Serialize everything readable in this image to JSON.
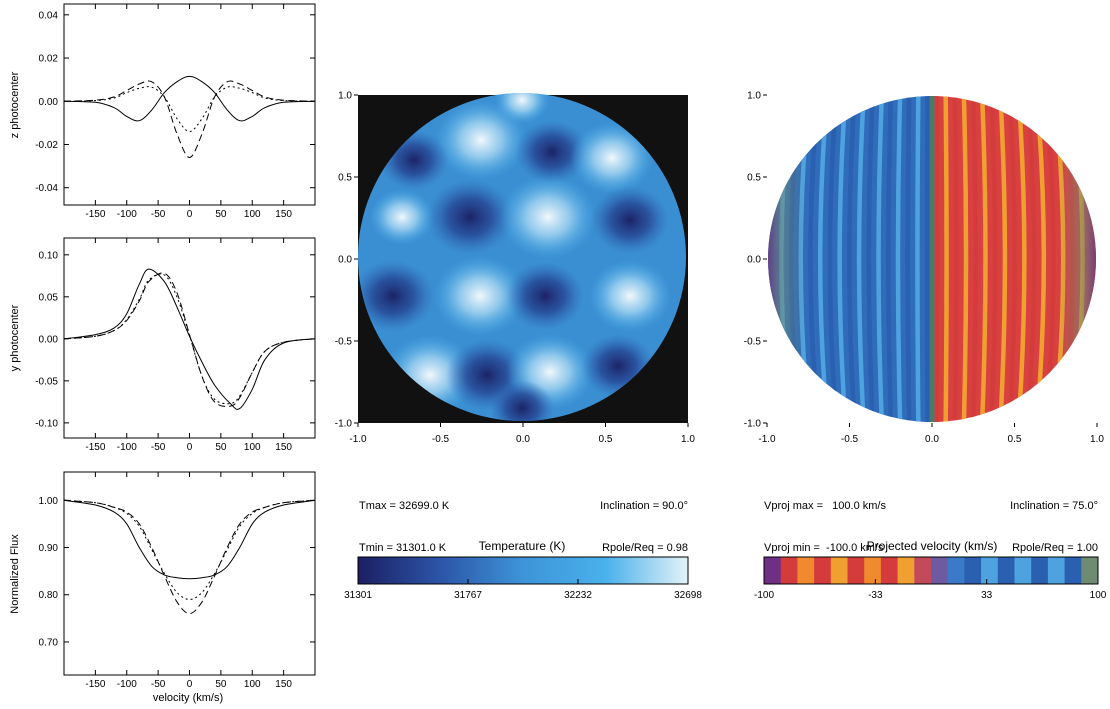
{
  "line_panels": [
    {
      "ylabel": "z photocenter",
      "xlabel": "",
      "xlim": [
        -200,
        200
      ],
      "ylim": [
        -0.048,
        0.045
      ],
      "yticks": [
        "0.04",
        "0.02",
        "0.00",
        "-0.02",
        "-0.04"
      ],
      "ytick_values": [
        0.04,
        0.02,
        0.0,
        -0.02,
        -0.04
      ],
      "xticks": [
        "-150",
        "-100",
        "-50",
        "0",
        "50",
        "100",
        "150"
      ],
      "xtick_values": [
        -150,
        -100,
        -50,
        0,
        50,
        100,
        150
      ]
    },
    {
      "ylabel": "y photocenter",
      "xlabel": "",
      "xlim": [
        -200,
        200
      ],
      "ylim": [
        -0.118,
        0.12
      ],
      "yticks": [
        "0.10",
        "0.05",
        "0.00",
        "-0.05",
        "-0.10"
      ],
      "ytick_values": [
        0.1,
        0.05,
        0.0,
        -0.05,
        -0.1
      ],
      "xticks": [
        "-150",
        "-100",
        "-50",
        "0",
        "50",
        "100",
        "150"
      ],
      "xtick_values": [
        -150,
        -100,
        -50,
        0,
        50,
        100,
        150
      ]
    },
    {
      "ylabel": "Normalized Flux",
      "xlabel": "velocity (km/s)",
      "xlim": [
        -200,
        200
      ],
      "ylim": [
        0.63,
        1.06
      ],
      "yticks": [
        "1.00",
        "0.90",
        "0.80",
        "0.70"
      ],
      "ytick_values": [
        1.0,
        0.9,
        0.8,
        0.7
      ],
      "xticks": [
        "-150",
        "-100",
        "-50",
        "0",
        "50",
        "100",
        "150"
      ],
      "xtick_values": [
        -150,
        -100,
        -50,
        0,
        50,
        100,
        150
      ]
    }
  ],
  "image_panels": [
    {
      "kind": "temperature",
      "ticks": [
        "-1.0",
        "-0.5",
        "0.0",
        "0.5",
        "1.0"
      ],
      "tick_values": [
        -1.0,
        -0.5,
        0.0,
        0.5,
        1.0
      ],
      "info_left": [
        "Tmax = 32699.0 K",
        "Tmin = 31301.0 K"
      ],
      "info_right": [
        "Inclination = 90.0°",
        "Rpole/Req = 0.98"
      ],
      "colorbar": {
        "title": "Temperature (K)",
        "tick_labels": [
          "31301",
          "31767",
          "32232",
          "32698"
        ],
        "stops": [
          "#1b1f63",
          "#2c55a8",
          "#3d94d8",
          "#49b1ec",
          "#e4f2f8"
        ]
      }
    },
    {
      "kind": "velocity",
      "ticks": [
        "-1.0",
        "-0.5",
        "0.0",
        "0.5",
        "1.0"
      ],
      "tick_values": [
        -1.0,
        -0.5,
        0.0,
        0.5,
        1.0
      ],
      "info_left": [
        "Vproj max =   100.0 km/s",
        "Vproj min =  -100.0 km/s"
      ],
      "info_right": [
        "Inclination = 75.0°",
        "Rpole/Req = 1.00"
      ],
      "colorbar": {
        "title": "Projected velocity (km/s)",
        "tick_labels": [
          "-100",
          "-33",
          "33",
          "100"
        ],
        "stops": [
          "#6e2f85",
          "#d43c3c",
          "#ef8a2e",
          "#4a9ad8",
          "#2b5fb0",
          "#6f8b72"
        ]
      }
    }
  ],
  "chart_data": [
    {
      "type": "line",
      "ylabel": "z photocenter",
      "x": [
        -200,
        -150,
        -120,
        -100,
        -80,
        -60,
        -40,
        -20,
        0,
        20,
        40,
        60,
        80,
        100,
        120,
        150,
        200
      ],
      "ylim": [
        -0.048,
        0.045
      ],
      "series": [
        {
          "style": "solid",
          "values": [
            0.0,
            -0.0005,
            -0.003,
            -0.007,
            -0.009,
            -0.004,
            0.004,
            0.009,
            0.0115,
            0.009,
            0.004,
            -0.004,
            -0.009,
            -0.007,
            -0.003,
            -0.0005,
            0.0
          ]
        },
        {
          "style": "dashed",
          "values": [
            0.0,
            0.0005,
            0.002,
            0.005,
            0.008,
            0.009,
            0.002,
            -0.015,
            -0.026,
            -0.015,
            0.002,
            0.009,
            0.008,
            0.005,
            0.002,
            0.0005,
            0.0
          ]
        },
        {
          "style": "dotted",
          "values": [
            0.0,
            0.0003,
            0.0015,
            0.004,
            0.006,
            0.0065,
            0.002,
            -0.008,
            -0.014,
            -0.008,
            0.002,
            0.0065,
            0.006,
            0.004,
            0.0015,
            0.0003,
            0.0
          ]
        }
      ]
    },
    {
      "type": "line",
      "ylabel": "y photocenter",
      "x": [
        -200,
        -150,
        -120,
        -100,
        -80,
        -65,
        -40,
        -20,
        0,
        20,
        40,
        65,
        80,
        100,
        120,
        150,
        200
      ],
      "ylim": [
        -0.118,
        0.12
      ],
      "series": [
        {
          "style": "solid",
          "values": [
            0.0,
            0.005,
            0.013,
            0.03,
            0.065,
            0.083,
            0.068,
            0.038,
            0.003,
            -0.028,
            -0.055,
            -0.077,
            -0.083,
            -0.06,
            -0.025,
            -0.005,
            0.0
          ]
        },
        {
          "style": "dashed",
          "values": [
            0.0,
            0.003,
            0.01,
            0.022,
            0.045,
            0.068,
            0.078,
            0.055,
            0.005,
            -0.045,
            -0.075,
            -0.08,
            -0.07,
            -0.04,
            -0.015,
            -0.004,
            0.0
          ]
        },
        {
          "style": "dotted",
          "values": [
            0.0,
            0.003,
            0.01,
            0.023,
            0.047,
            0.07,
            0.076,
            0.05,
            0.004,
            -0.045,
            -0.072,
            -0.077,
            -0.068,
            -0.04,
            -0.015,
            -0.004,
            0.0
          ]
        }
      ]
    },
    {
      "type": "line",
      "ylabel": "Normalized Flux",
      "xlabel": "velocity (km/s)",
      "x": [
        -200,
        -150,
        -120,
        -100,
        -80,
        -60,
        -40,
        -20,
        0,
        20,
        40,
        60,
        80,
        100,
        120,
        150,
        200
      ],
      "ylim": [
        0.63,
        1.06
      ],
      "series": [
        {
          "style": "solid",
          "values": [
            1.0,
            0.99,
            0.975,
            0.95,
            0.9,
            0.86,
            0.842,
            0.836,
            0.834,
            0.836,
            0.842,
            0.86,
            0.9,
            0.95,
            0.975,
            0.99,
            1.0
          ]
        },
        {
          "style": "dashed",
          "values": [
            1.0,
            0.995,
            0.985,
            0.975,
            0.95,
            0.9,
            0.84,
            0.785,
            0.76,
            0.785,
            0.84,
            0.9,
            0.95,
            0.975,
            0.985,
            0.995,
            1.0
          ]
        },
        {
          "style": "dotted",
          "values": [
            1.0,
            0.995,
            0.985,
            0.972,
            0.945,
            0.895,
            0.845,
            0.805,
            0.79,
            0.805,
            0.845,
            0.895,
            0.945,
            0.972,
            0.985,
            0.995,
            1.0
          ]
        }
      ]
    }
  ]
}
